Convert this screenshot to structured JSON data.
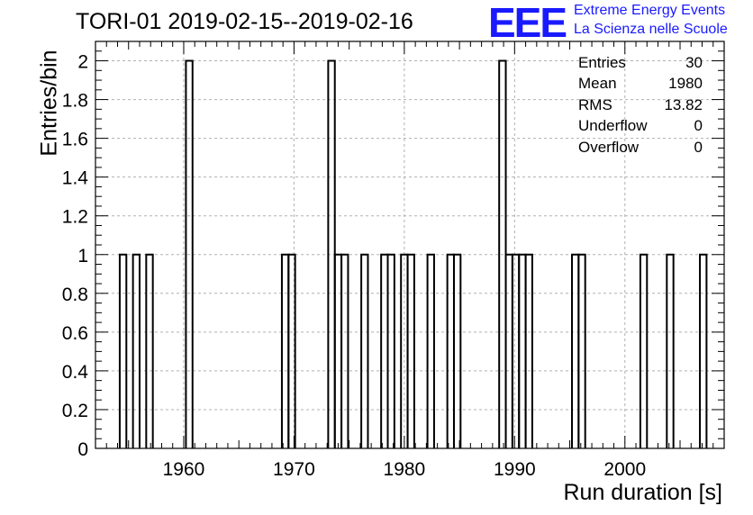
{
  "header": {
    "title": "TORI-01 2019-02-15--2019-02-16",
    "logo_text": "EEE",
    "logo_line1": "Extreme Energy Events",
    "logo_line2": "La Scienza nelle Scuole"
  },
  "stats": [
    {
      "label": "Entries",
      "value": "30"
    },
    {
      "label": "Mean",
      "value": "1980"
    },
    {
      "label": "RMS",
      "value": "13.82"
    },
    {
      "label": "Underflow",
      "value": "0"
    },
    {
      "label": "Overflow",
      "value": "0"
    }
  ],
  "colors": {
    "line": "#000000",
    "grid": "#b0b0b0",
    "logo": "#1a1aff"
  },
  "chart_data": {
    "type": "bar",
    "style": "step-histogram",
    "title": "TORI-01 2019-02-15--2019-02-16",
    "xlabel": "Run duration [s]",
    "ylabel": "Entries/bin",
    "xlim": [
      1952,
      2009
    ],
    "ylim": [
      0,
      2.1
    ],
    "xticks": [
      1960,
      1970,
      1980,
      1990,
      2000
    ],
    "yticks": [
      0,
      0.2,
      0.4,
      0.6,
      0.8,
      1,
      1.2,
      1.4,
      1.6,
      1.8,
      2
    ],
    "ytick_labels": [
      "0",
      "0.2",
      "0.4",
      "0.6",
      "0.8",
      "1",
      "1.2",
      "1.4",
      "1.6",
      "1.8",
      "2"
    ],
    "grid": true,
    "bin_width": 0.6,
    "bins": [
      {
        "x": 1954.5,
        "count": 1
      },
      {
        "x": 1955.7,
        "count": 1
      },
      {
        "x": 1956.9,
        "count": 1
      },
      {
        "x": 1960.5,
        "count": 2
      },
      {
        "x": 1969.2,
        "count": 1
      },
      {
        "x": 1969.8,
        "count": 1
      },
      {
        "x": 1973.4,
        "count": 2
      },
      {
        "x": 1974.0,
        "count": 1
      },
      {
        "x": 1974.6,
        "count": 1
      },
      {
        "x": 1976.4,
        "count": 1
      },
      {
        "x": 1978.2,
        "count": 1
      },
      {
        "x": 1978.8,
        "count": 1
      },
      {
        "x": 1980.0,
        "count": 1
      },
      {
        "x": 1980.6,
        "count": 1
      },
      {
        "x": 1982.4,
        "count": 1
      },
      {
        "x": 1984.2,
        "count": 1
      },
      {
        "x": 1984.8,
        "count": 1
      },
      {
        "x": 1988.9,
        "count": 2
      },
      {
        "x": 1989.5,
        "count": 1
      },
      {
        "x": 1990.1,
        "count": 1
      },
      {
        "x": 1990.7,
        "count": 1
      },
      {
        "x": 1991.3,
        "count": 1
      },
      {
        "x": 1995.5,
        "count": 1
      },
      {
        "x": 1996.1,
        "count": 1
      },
      {
        "x": 2001.7,
        "count": 1
      },
      {
        "x": 2004.1,
        "count": 1
      },
      {
        "x": 2007.1,
        "count": 1
      }
    ]
  }
}
